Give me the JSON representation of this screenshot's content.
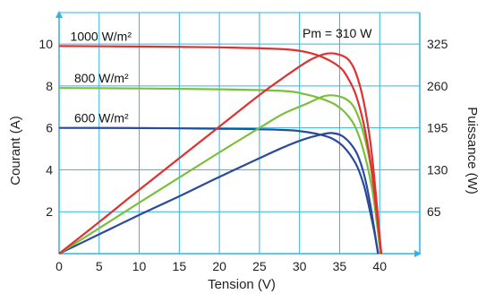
{
  "chart_data": {
    "type": "line",
    "xlabel": "Tension (V)",
    "ylabel_left": "Courant (A)",
    "ylabel_right": "Puissance (W)",
    "xlim": [
      0,
      45
    ],
    "ylim_left": [
      0,
      11.5
    ],
    "ylim_right": [
      0,
      373.8
    ],
    "x_ticks": [
      "0",
      "5",
      "10",
      "15",
      "20",
      "25",
      "30",
      "35",
      "40"
    ],
    "x_tick_values": [
      0,
      5,
      10,
      15,
      20,
      25,
      30,
      35,
      40
    ],
    "y_left_ticks": [
      "2",
      "4",
      "6",
      "8",
      "10"
    ],
    "y_left_tick_values": [
      2,
      4,
      6,
      8,
      10
    ],
    "y_right_ticks": [
      "65",
      "130",
      "195",
      "260",
      "325"
    ],
    "y_right_tick_values": [
      65,
      130,
      195,
      260,
      325
    ],
    "grid": true,
    "annotation": "Pm = 310 W",
    "colors": {
      "grid": "#2fb4e8",
      "axis": "#2fb4e8",
      "s1000": "#e03030",
      "s800": "#7cbf3a",
      "s600": "#2a4a9c"
    },
    "series": [
      {
        "name": "1000 W/m²",
        "color_key": "s1000",
        "current": {
          "x": [
            0,
            10,
            20,
            28,
            31,
            33,
            35,
            36,
            37,
            38,
            39,
            39.6,
            40.2
          ],
          "y": [
            9.9,
            9.88,
            9.84,
            9.75,
            9.6,
            9.35,
            8.9,
            8.4,
            7.6,
            6.2,
            4.0,
            2.0,
            0
          ]
        },
        "power": {
          "x": [
            0,
            5,
            10,
            15,
            20,
            25,
            28,
            31,
            33,
            34.5,
            36,
            37,
            38,
            39,
            40.2
          ],
          "y": [
            0,
            49,
            99,
            148,
            197,
            246,
            273,
            298,
            309,
            310,
            302,
            281,
            236,
            156,
            0
          ]
        }
      },
      {
        "name": "800 W/m²",
        "color_key": "s800",
        "current": {
          "x": [
            0,
            10,
            20,
            28,
            30.5,
            32.5,
            34.5,
            36,
            37,
            38,
            39,
            39.6,
            40.1
          ],
          "y": [
            7.9,
            7.88,
            7.84,
            7.76,
            7.62,
            7.42,
            7.1,
            6.6,
            6.0,
            4.9,
            3.2,
            1.6,
            0
          ]
        },
        "power": {
          "x": [
            0,
            5,
            10,
            15,
            20,
            25,
            28,
            31,
            33,
            34.5,
            36,
            37,
            38,
            39,
            40.1
          ],
          "y": [
            0,
            39.5,
            79,
            118,
            157,
            195,
            217,
            233,
            244,
            245,
            238,
            222,
            186,
            125,
            0
          ]
        }
      },
      {
        "name": "600 W/m²",
        "color_key": "s600",
        "current": {
          "x": [
            0,
            10,
            20,
            28,
            30.5,
            32.5,
            34,
            35.5,
            37,
            38,
            38.8,
            39.4,
            39.8
          ],
          "y": [
            6.0,
            5.99,
            5.96,
            5.9,
            5.82,
            5.68,
            5.5,
            5.1,
            4.3,
            3.3,
            2.0,
            0.9,
            0
          ]
        },
        "power": {
          "x": [
            0,
            5,
            10,
            15,
            20,
            25,
            28,
            30.5,
            32.5,
            34,
            35.5,
            37,
            38,
            38.8,
            39.8
          ],
          "y": [
            0,
            30,
            60,
            89,
            119,
            148,
            165,
            177,
            184,
            187,
            181,
            159,
            125,
            78,
            0
          ]
        }
      }
    ]
  }
}
